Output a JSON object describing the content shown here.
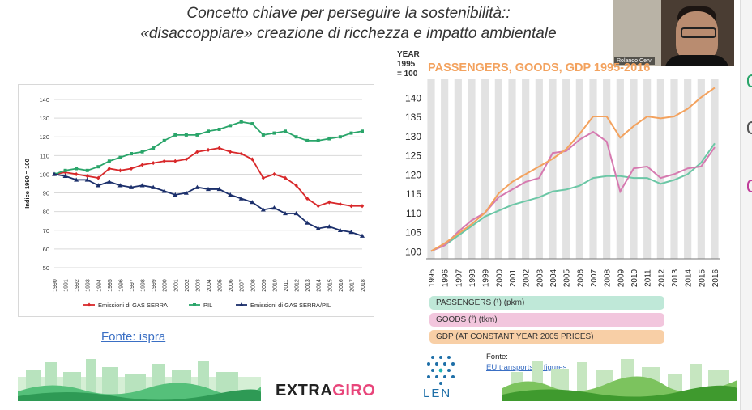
{
  "slide": {
    "title_line1": "Concetto chiave per perseguire la sostenibilità::",
    "title_line2": "«disaccoppiare» creazione di ricchezza e impatto ambientale"
  },
  "video": {
    "participant_name": "Rolando Cervi"
  },
  "source_left": {
    "label": "Fonte: ispra"
  },
  "source_right": {
    "label": "Fonte:",
    "link": "EU transports in figures"
  },
  "brand": {
    "part1": "EXTRA",
    "part2": "GIRO",
    "color1": "#222222",
    "color2": "#e8457a"
  },
  "len_logo": {
    "text": "LEN"
  },
  "legend_bars": [
    {
      "label": "PASSENGERS (¹) (pkm)",
      "color": "#bfe8d8"
    },
    {
      "label": "GOODS (²) (tkm)",
      "color": "#f2c6dd"
    },
    {
      "label": "GDP (AT CONSTANT YEAR 2005 PRICES)",
      "color": "#f8cfa6"
    }
  ],
  "chart_data": [
    {
      "type": "line",
      "title": "",
      "ylabel": "Indice 1990 = 100",
      "ylim": [
        50,
        140
      ],
      "yticks": [
        50,
        60,
        70,
        80,
        90,
        100,
        110,
        120,
        130,
        140
      ],
      "grid": true,
      "legend_position": "bottom",
      "x": [
        "1990",
        "1991",
        "1992",
        "1993",
        "1994",
        "1995",
        "1996",
        "1997",
        "1998",
        "1999",
        "2000",
        "2001",
        "2002",
        "2003",
        "2004",
        "2005",
        "2006",
        "2007",
        "2008",
        "2009",
        "2010",
        "2011",
        "2012",
        "2013",
        "2014",
        "2015",
        "2016",
        "2017",
        "2018"
      ],
      "series": [
        {
          "name": "Emissioni di GAS SERRA",
          "color": "#d8282a",
          "marker": "diamond",
          "values": [
            100,
            101,
            100,
            99,
            98,
            103,
            102,
            103,
            105,
            106,
            107,
            107,
            108,
            112,
            113,
            114,
            112,
            111,
            108,
            98,
            100,
            98,
            94,
            87,
            83,
            85,
            84,
            83,
            83
          ]
        },
        {
          "name": "PIL",
          "color": "#2aa56a",
          "marker": "square",
          "values": [
            100,
            102,
            103,
            102,
            104,
            107,
            109,
            111,
            112,
            114,
            118,
            121,
            121,
            121,
            123,
            124,
            126,
            128,
            127,
            121,
            122,
            123,
            120,
            118,
            118,
            119,
            120,
            122,
            123
          ]
        },
        {
          "name": "Emissioni di GAS SERRA/PIL",
          "color": "#1b2f6b",
          "marker": "triangle",
          "values": [
            100,
            99,
            97,
            97,
            94,
            96,
            94,
            93,
            94,
            93,
            91,
            89,
            90,
            93,
            92,
            92,
            89,
            87,
            85,
            81,
            82,
            79,
            79,
            74,
            71,
            72,
            70,
            69,
            67
          ]
        }
      ]
    },
    {
      "type": "line",
      "title": "PASSENGERS, GOODS, GDP 1995-2016",
      "ylabel": "YEAR 1995 = 100",
      "ylim": [
        98,
        143
      ],
      "yticks": [
        100,
        105,
        110,
        115,
        120,
        125,
        130,
        135,
        140
      ],
      "grid": true,
      "x": [
        "1995",
        "1996",
        "1997",
        "1998",
        "1999",
        "2000",
        "2001",
        "2002",
        "2003",
        "2004",
        "2005",
        "2006",
        "2007",
        "2008",
        "2009",
        "2010",
        "2011",
        "2012",
        "2013",
        "2014",
        "2015",
        "2016"
      ],
      "series": [
        {
          "name": "PASSENGERS (¹) (pkm)",
          "color": "#6cc7a6",
          "values": [
            100,
            101.5,
            104,
            106.5,
            109,
            110.5,
            112,
            113,
            114,
            115.5,
            116,
            117,
            119,
            119.5,
            119.5,
            119,
            119,
            117.5,
            118.5,
            120,
            123,
            128
          ]
        },
        {
          "name": "GOODS (²) (tkm)",
          "color": "#d67ab0",
          "values": [
            100,
            101.5,
            105,
            108,
            110,
            114,
            116,
            118,
            119,
            125.5,
            126,
            129,
            131,
            128.5,
            115.5,
            121.5,
            122,
            119,
            120,
            121.5,
            122,
            127
          ]
        },
        {
          "name": "GDP (AT CONSTANT YEAR 2005 PRICES)",
          "color": "#f3a25e",
          "values": [
            100,
            102,
            104.5,
            107,
            110,
            115,
            118,
            120,
            122,
            124,
            126.5,
            130.5,
            135,
            135,
            129.5,
            132.5,
            135,
            134.5,
            135,
            137,
            140,
            142.5
          ]
        }
      ]
    }
  ]
}
